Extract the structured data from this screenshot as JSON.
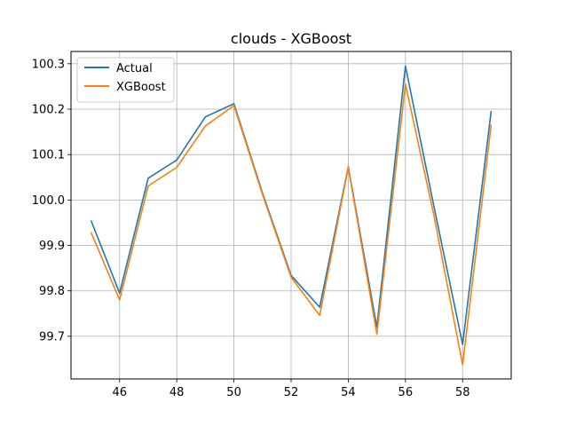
{
  "chart_data": {
    "type": "line",
    "title": "clouds - XGBoost",
    "xlabel": "",
    "ylabel": "",
    "x": [
      45,
      46,
      47,
      48,
      49,
      50,
      51,
      52,
      53,
      54,
      55,
      56,
      57,
      58,
      59
    ],
    "series": [
      {
        "name": "Actual",
        "color": "#1f77b4",
        "values": [
          99.955,
          99.795,
          100.048,
          100.088,
          100.183,
          100.212,
          100.015,
          99.834,
          99.764,
          100.073,
          99.72,
          100.295,
          99.985,
          99.682,
          100.196
        ]
      },
      {
        "name": "XGBoost",
        "color": "#ff7f0e",
        "values": [
          99.929,
          99.78,
          100.031,
          100.072,
          100.163,
          100.208,
          100.012,
          99.83,
          99.746,
          100.072,
          99.705,
          100.255,
          99.965,
          99.637,
          100.166
        ]
      }
    ],
    "xlim": [
      44.3,
      59.7
    ],
    "ylim": [
      99.606,
      100.327
    ],
    "xticks": [
      46,
      48,
      50,
      52,
      54,
      56,
      58
    ],
    "yticks": [
      99.7,
      99.8,
      99.9,
      100.0,
      100.1,
      100.2,
      100.3
    ],
    "ytick_labels": [
      "99.7",
      "99.8",
      "99.9",
      "100.0",
      "100.1",
      "100.2",
      "100.3"
    ],
    "grid": true,
    "legend_position": "upper-left"
  }
}
